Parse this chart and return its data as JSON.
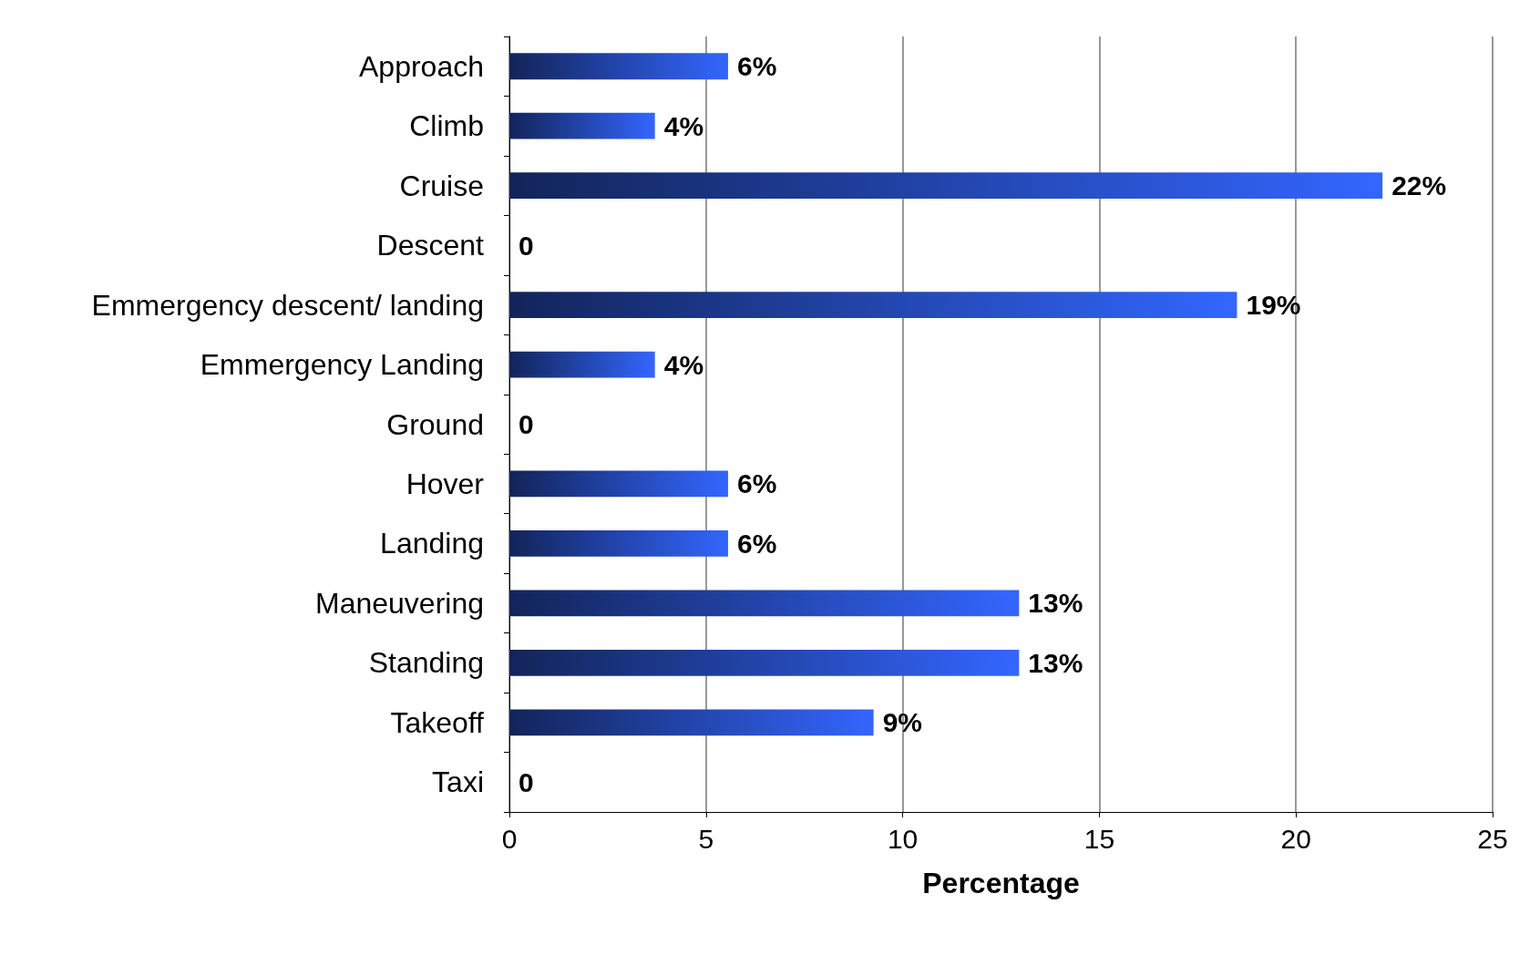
{
  "chart_data": {
    "type": "bar",
    "orientation": "horizontal",
    "xlabel": "Percentage",
    "categories": [
      "Approach",
      "Climb",
      "Cruise",
      "Descent",
      "Emmergency descent/ landing",
      "Emmergency Landing",
      "Ground",
      "Hover",
      "Landing",
      "Maneuvering",
      "Standing",
      "Takeoff",
      "Taxi"
    ],
    "values": [
      5.56,
      3.7,
      22.2,
      0,
      18.5,
      3.7,
      0,
      5.56,
      5.56,
      12.96,
      12.96,
      9.26,
      0
    ],
    "value_labels": [
      "6%",
      "4%",
      "22%",
      "0",
      "19%",
      "4%",
      "0",
      "6%",
      "6%",
      "13%",
      "13%",
      "9%",
      "0"
    ],
    "color": "#3366ff",
    "xlim": [
      0,
      25
    ],
    "xticks": [
      0,
      5,
      10,
      15,
      20,
      25
    ],
    "grid": "x"
  }
}
